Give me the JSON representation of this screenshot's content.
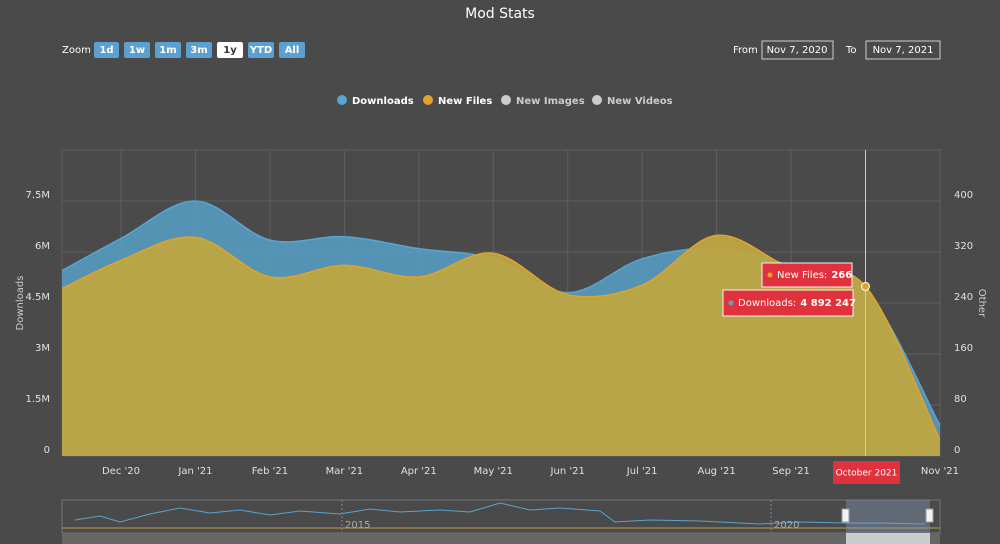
{
  "chart_data": {
    "type": "area",
    "title": "Mod Stats",
    "range_selector": {
      "label": "Zoom",
      "buttons": [
        "1d",
        "1w",
        "1m",
        "3m",
        "1y",
        "YTD",
        "All"
      ],
      "selected": 4
    },
    "date_range": {
      "from_label": "From",
      "from": "Nov 7, 2020",
      "to_label": "To",
      "to": "Nov 7, 2021"
    },
    "categories": [
      null,
      "Dec '20",
      "Jan '21",
      "Feb '21",
      "Mar '21",
      "Apr '21",
      "May '21",
      "Jun '21",
      "Jul '21",
      "Aug '21",
      "Sep '21",
      "Oct '21",
      "Nov '21"
    ],
    "series": [
      {
        "name": "Downloads",
        "color": "#58a5cf",
        "axis": "y",
        "values": [
          5200000,
          6400000,
          7500000,
          6350000,
          6450000,
          6100000,
          5800000,
          4800000,
          5800000,
          6100000,
          5600000,
          4892247,
          900000
        ]
      },
      {
        "name": "New Files",
        "color": "#e2a32a",
        "axis": "y2",
        "values": [
          250,
          307,
          343,
          281,
          299,
          281,
          318,
          253,
          268,
          346,
          295,
          266,
          25
        ]
      }
    ],
    "hidden_series": [
      "New Images",
      "New Videos"
    ],
    "y_label": "Downloads",
    "y2_label": "Other",
    "ylim": [
      0,
      9000000
    ],
    "yticks": [
      0,
      {
        "value": 1500000,
        "label": "1.5M"
      },
      {
        "value": 3000000,
        "label": "3M"
      },
      {
        "value": 4500000,
        "label": "4.5M"
      },
      {
        "value": 6000000,
        "label": "6M"
      },
      {
        "value": 7500000,
        "label": "7.5M"
      }
    ],
    "y2lim": [
      0,
      480
    ],
    "y2ticks": [
      0,
      80,
      160,
      240,
      320,
      400
    ],
    "grid": true,
    "tooltip": {
      "point": 11,
      "header": "October 2021",
      "items": [
        {
          "text": "Downloads:",
          "value": "4 892 247"
        },
        {
          "text": "New Files:",
          "value": "266"
        }
      ]
    },
    "navigator": {
      "labels": [
        "2015",
        "2020"
      ]
    }
  }
}
